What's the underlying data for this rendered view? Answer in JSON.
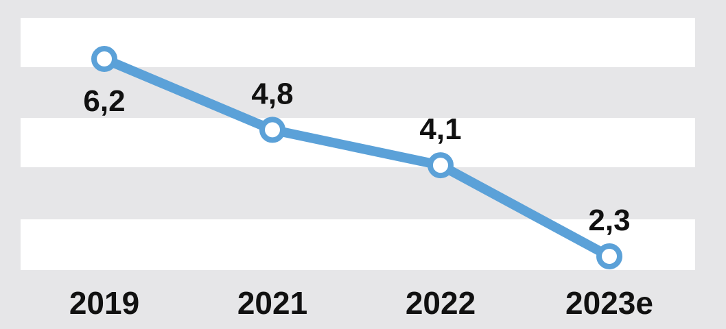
{
  "chart_data": {
    "type": "line",
    "categories": [
      "2019",
      "2021",
      "2022",
      "2023e"
    ],
    "series": [
      {
        "values": [
          6.2,
          4.8,
          4.1,
          2.3
        ],
        "labels": [
          "6,2",
          "4,8",
          "4,1",
          "2,3"
        ],
        "color": "#5ba1d8"
      }
    ],
    "ylim": [
      1.5,
      7.5
    ],
    "grid": "alternating horizontal bands",
    "legend": "none",
    "colors": {
      "background": "#e6e6e8",
      "band": "#ffffff",
      "line": "#5ba1d8",
      "text": "#111111"
    }
  }
}
